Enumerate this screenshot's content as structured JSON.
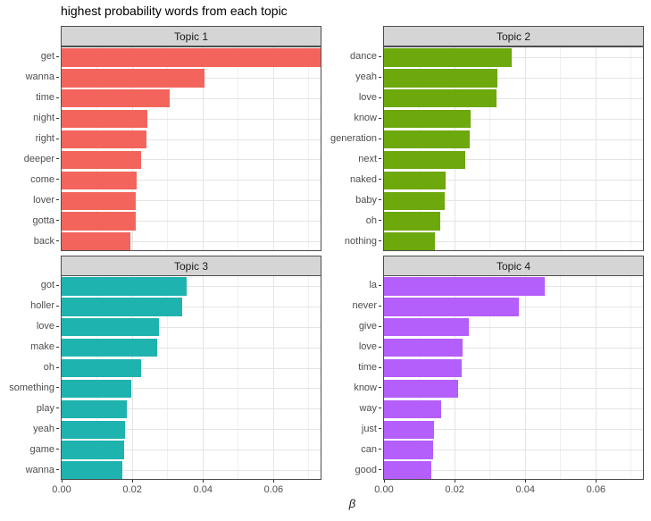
{
  "title": "highest probability words from each topic",
  "xlabel": "β",
  "colors": {
    "topic1_bar": "#F3655C",
    "topic2_bar": "#6DA80D",
    "topic3_bar": "#1FB3AF",
    "topic4_bar": "#B45EFC",
    "strip_background": "#D5D5D5",
    "panel_border": "#4D4D4D",
    "grid_major": "#E4E4E4",
    "grid_minor": "#F0F0F0",
    "axis_text": "#4D4D4D"
  },
  "chart_data": {
    "type": "bar",
    "orientation": "horizontal",
    "title": "highest probability words from each topic",
    "xlabel": "β",
    "ylabel": "",
    "xlim": [
      0,
      0.0733
    ],
    "x_major_ticks": [
      0,
      0.02,
      0.04,
      0.06
    ],
    "x_tick_labels": [
      "0.00",
      "0.02",
      "0.04",
      "0.06"
    ],
    "x_minor_ticks": [
      0.01,
      0.03,
      0.05,
      0.07
    ],
    "grid": true,
    "legend": "none",
    "facet_layout": "2x2",
    "facets": [
      {
        "label": "Topic 1",
        "color": "#F3655C",
        "categories": [
          "get",
          "wanna",
          "time",
          "night",
          "right",
          "deeper",
          "come",
          "lover",
          "gotta",
          "back"
        ],
        "values": [
          0.0733,
          0.0404,
          0.0306,
          0.0243,
          0.0241,
          0.0225,
          0.0212,
          0.0211,
          0.021,
          0.0194
        ]
      },
      {
        "label": "Topic 2",
        "color": "#6DA80D",
        "categories": [
          "dance",
          "yeah",
          "love",
          "know",
          "generation",
          "next",
          "naked",
          "baby",
          "oh",
          "nothing"
        ],
        "values": [
          0.0362,
          0.032,
          0.0319,
          0.0246,
          0.0243,
          0.0231,
          0.0174,
          0.0173,
          0.016,
          0.0143
        ]
      },
      {
        "label": "Topic 3",
        "color": "#1FB3AF",
        "categories": [
          "got",
          "holler",
          "love",
          "make",
          "oh",
          "something",
          "play",
          "yeah",
          "game",
          "wanna"
        ],
        "values": [
          0.0355,
          0.0341,
          0.0275,
          0.0271,
          0.0226,
          0.0198,
          0.0185,
          0.0179,
          0.0178,
          0.0171
        ]
      },
      {
        "label": "Topic 4",
        "color": "#B45EFC",
        "categories": [
          "la",
          "never",
          "give",
          "love",
          "time",
          "know",
          "way",
          "just",
          "can",
          "good"
        ],
        "values": [
          0.0454,
          0.0381,
          0.0241,
          0.0222,
          0.0221,
          0.021,
          0.0162,
          0.0141,
          0.014,
          0.0133
        ]
      }
    ]
  }
}
